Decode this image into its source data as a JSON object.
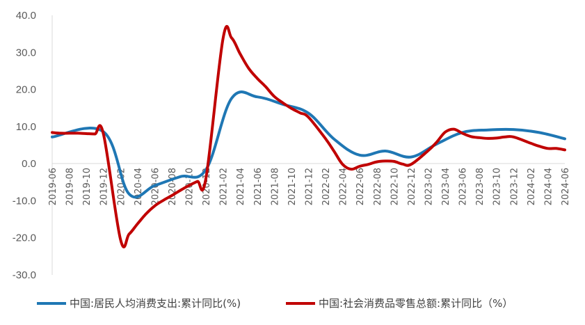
{
  "chart_data": {
    "type": "line",
    "title": "",
    "xlabel": "",
    "ylabel": "",
    "ylim": [
      -30,
      40
    ],
    "y_ticks": [
      "40.0",
      "30.0",
      "20.0",
      "10.0",
      "0.0",
      "-10.0",
      "-20.0",
      "-30.0"
    ],
    "grid": false,
    "legend_position": "bottom",
    "x_tick_labels": [
      "2019-06",
      "2019-08",
      "2019-10",
      "2019-12",
      "2020-02",
      "2020-04",
      "2020-06",
      "2020-08",
      "2020-10",
      "2020-12",
      "2021-02",
      "2021-04",
      "2021-06",
      "2021-08",
      "2021-10",
      "2021-12",
      "2022-02",
      "2022-04",
      "2022-06",
      "2022-08",
      "2022-10",
      "2022-12",
      "2023-02",
      "2023-04",
      "2023-06",
      "2023-08",
      "2023-10",
      "2023-12",
      "2024-02",
      "2024-04",
      "2024-06"
    ],
    "categories": [
      "2019-06",
      "2019-07",
      "2019-08",
      "2019-09",
      "2019-10",
      "2019-11",
      "2019-12",
      "2020-01",
      "2020-02",
      "2020-03",
      "2020-04",
      "2020-05",
      "2020-06",
      "2020-07",
      "2020-08",
      "2020-09",
      "2020-10",
      "2020-11",
      "2020-12",
      "2021-01",
      "2021-02",
      "2021-03",
      "2021-04",
      "2021-05",
      "2021-06",
      "2021-07",
      "2021-08",
      "2021-09",
      "2021-10",
      "2021-11",
      "2021-12",
      "2022-01",
      "2022-02",
      "2022-03",
      "2022-04",
      "2022-05",
      "2022-06",
      "2022-07",
      "2022-08",
      "2022-09",
      "2022-10",
      "2022-11",
      "2022-12",
      "2023-01",
      "2023-02",
      "2023-03",
      "2023-04",
      "2023-05",
      "2023-06",
      "2023-07",
      "2023-08",
      "2023-09",
      "2023-10",
      "2023-11",
      "2023-12",
      "2024-01",
      "2024-02",
      "2024-03",
      "2024-04",
      "2024-05",
      "2024-06"
    ],
    "series": [
      {
        "name": "中国:居民人均消费支出:累计同比(%)",
        "color": "#1f77b4",
        "values": [
          7.2,
          null,
          null,
          null,
          null,
          null,
          8.6,
          null,
          null,
          -8.2,
          null,
          null,
          -5.9,
          null,
          null,
          -3.5,
          null,
          null,
          -1.6,
          null,
          null,
          17.6,
          null,
          null,
          18.0,
          null,
          null,
          16.0,
          null,
          null,
          13.6,
          null,
          null,
          6.6,
          null,
          null,
          2.3,
          null,
          null,
          3.4,
          null,
          null,
          1.8,
          null,
          null,
          5.3,
          null,
          null,
          8.4,
          null,
          null,
          9.1,
          null,
          null,
          9.2,
          null,
          null,
          8.4,
          null,
          null,
          6.7
        ]
      },
      {
        "name": "中国:社会消费品零售总额:累计同比（%）",
        "color": "#c00000",
        "values": [
          8.4,
          8.2,
          8.2,
          8.2,
          8.1,
          8.0,
          8.0,
          null,
          -20.5,
          -19.0,
          -16.2,
          -13.5,
          -11.4,
          -9.9,
          -8.6,
          -7.2,
          -5.9,
          -4.8,
          -3.9,
          null,
          33.8,
          33.9,
          29.6,
          25.7,
          23.0,
          20.7,
          18.1,
          16.4,
          14.9,
          13.7,
          12.5,
          null,
          6.7,
          3.3,
          -0.2,
          -1.5,
          -0.7,
          -0.2,
          0.5,
          0.7,
          0.6,
          -0.1,
          -0.2,
          null,
          3.5,
          5.8,
          8.5,
          9.3,
          8.2,
          7.3,
          7.0,
          6.8,
          6.9,
          7.2,
          7.2,
          null,
          5.5,
          4.7,
          4.1,
          4.1,
          3.7
        ]
      }
    ]
  }
}
